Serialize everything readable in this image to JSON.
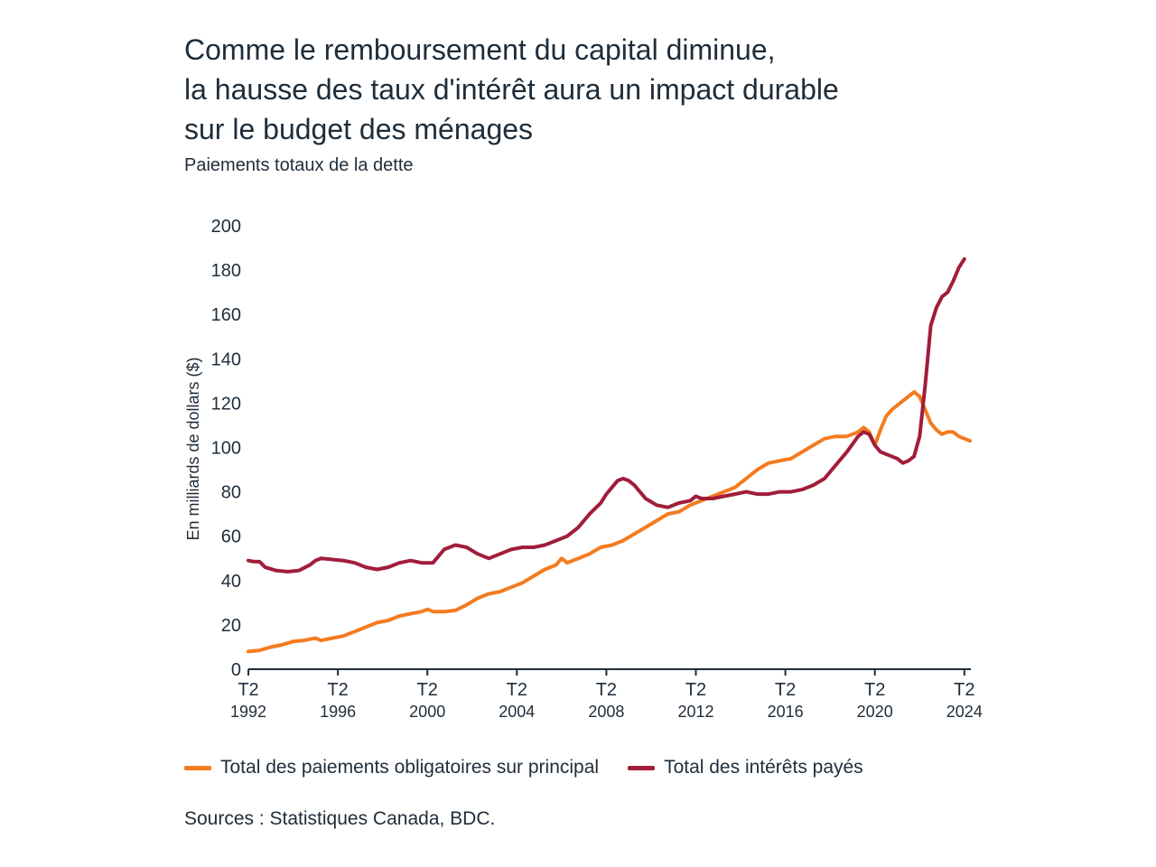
{
  "header": {
    "title_lines": [
      "Comme le remboursement du capital diminue,",
      "la hausse des taux d'intérêt aura un impact durable",
      "sur le budget des ménages"
    ],
    "subtitle": "Paiements totaux de la dette"
  },
  "footer": {
    "source": "Sources : Statistiques Canada, BDC."
  },
  "chart_data": {
    "type": "line",
    "title": "Comme le remboursement du capital diminue, la hausse des taux d'intérêt aura un impact durable sur le budget des ménages",
    "subtitle": "Paiements totaux de la dette",
    "xlabel": "",
    "ylabel": "En milliards de dollars ($)",
    "ylim": [
      0,
      200
    ],
    "xlim": [
      1992.25,
      2024.5
    ],
    "yticks": [
      0,
      20,
      40,
      60,
      80,
      100,
      120,
      140,
      160,
      180,
      200
    ],
    "xticks": [
      {
        "x": 1992.25,
        "top": "T2",
        "bottom": "1992"
      },
      {
        "x": 1996.25,
        "top": "T2",
        "bottom": "1996"
      },
      {
        "x": 2000.25,
        "top": "T2",
        "bottom": "2000"
      },
      {
        "x": 2004.25,
        "top": "T2",
        "bottom": "2004"
      },
      {
        "x": 2008.25,
        "top": "T2",
        "bottom": "2008"
      },
      {
        "x": 2012.25,
        "top": "T2",
        "bottom": "2012"
      },
      {
        "x": 2016.25,
        "top": "T2",
        "bottom": "2016"
      },
      {
        "x": 2020.25,
        "top": "T2",
        "bottom": "2020"
      },
      {
        "x": 2024.25,
        "top": "T2",
        "bottom": "2024"
      }
    ],
    "grid": false,
    "legend_position": "bottom",
    "series": [
      {
        "name": "Total des paiements obligatoires sur principal",
        "color": "#f47b20",
        "points": [
          [
            1992.25,
            8
          ],
          [
            1992.75,
            8.5
          ],
          [
            1993.25,
            10
          ],
          [
            1993.75,
            11
          ],
          [
            1994.25,
            12.5
          ],
          [
            1994.75,
            13
          ],
          [
            1995.25,
            14
          ],
          [
            1995.5,
            13
          ],
          [
            1996.0,
            14
          ],
          [
            1996.5,
            15
          ],
          [
            1997.0,
            17
          ],
          [
            1997.5,
            19
          ],
          [
            1998.0,
            21
          ],
          [
            1998.5,
            22
          ],
          [
            1999.0,
            24
          ],
          [
            1999.5,
            25
          ],
          [
            2000.0,
            26
          ],
          [
            2000.25,
            27
          ],
          [
            2000.5,
            26
          ],
          [
            2001.0,
            26
          ],
          [
            2001.5,
            26.5
          ],
          [
            2002.0,
            29
          ],
          [
            2002.5,
            32
          ],
          [
            2003.0,
            34
          ],
          [
            2003.5,
            35
          ],
          [
            2004.0,
            37
          ],
          [
            2004.5,
            39
          ],
          [
            2005.0,
            42
          ],
          [
            2005.5,
            45
          ],
          [
            2006.0,
            47
          ],
          [
            2006.25,
            50
          ],
          [
            2006.5,
            48
          ],
          [
            2007.0,
            50
          ],
          [
            2007.5,
            52
          ],
          [
            2008.0,
            55
          ],
          [
            2008.5,
            56
          ],
          [
            2009.0,
            58
          ],
          [
            2009.5,
            61
          ],
          [
            2010.0,
            64
          ],
          [
            2010.5,
            67
          ],
          [
            2011.0,
            70
          ],
          [
            2011.5,
            71
          ],
          [
            2012.0,
            74
          ],
          [
            2012.5,
            76
          ],
          [
            2013.0,
            78
          ],
          [
            2013.5,
            80
          ],
          [
            2014.0,
            82
          ],
          [
            2014.5,
            86
          ],
          [
            2015.0,
            90
          ],
          [
            2015.5,
            93
          ],
          [
            2016.0,
            94
          ],
          [
            2016.5,
            95
          ],
          [
            2017.0,
            98
          ],
          [
            2017.5,
            101
          ],
          [
            2018.0,
            104
          ],
          [
            2018.5,
            105
          ],
          [
            2019.0,
            105
          ],
          [
            2019.5,
            107
          ],
          [
            2019.75,
            109
          ],
          [
            2020.0,
            107
          ],
          [
            2020.25,
            101
          ],
          [
            2020.5,
            108
          ],
          [
            2020.75,
            114
          ],
          [
            2021.0,
            117
          ],
          [
            2021.5,
            121
          ],
          [
            2021.75,
            123
          ],
          [
            2022.0,
            125
          ],
          [
            2022.25,
            123
          ],
          [
            2022.5,
            117
          ],
          [
            2022.75,
            111
          ],
          [
            2023.0,
            108
          ],
          [
            2023.25,
            106
          ],
          [
            2023.5,
            107
          ],
          [
            2023.75,
            107
          ],
          [
            2024.0,
            105
          ],
          [
            2024.25,
            104
          ],
          [
            2024.5,
            103
          ]
        ]
      },
      {
        "name": "Total des intérêts payés",
        "color": "#a11d3a",
        "points": [
          [
            1992.25,
            49
          ],
          [
            1992.5,
            48.5
          ],
          [
            1992.75,
            48.5
          ],
          [
            1993.0,
            46
          ],
          [
            1993.5,
            44.5
          ],
          [
            1994.0,
            44
          ],
          [
            1994.5,
            44.5
          ],
          [
            1995.0,
            47
          ],
          [
            1995.25,
            49
          ],
          [
            1995.5,
            50
          ],
          [
            1996.0,
            49.5
          ],
          [
            1996.5,
            49
          ],
          [
            1997.0,
            48
          ],
          [
            1997.5,
            46
          ],
          [
            1998.0,
            45
          ],
          [
            1998.5,
            46
          ],
          [
            1999.0,
            48
          ],
          [
            1999.5,
            49
          ],
          [
            2000.0,
            48
          ],
          [
            2000.5,
            48
          ],
          [
            2001.0,
            54
          ],
          [
            2001.5,
            56
          ],
          [
            2002.0,
            55
          ],
          [
            2002.5,
            52
          ],
          [
            2003.0,
            50
          ],
          [
            2003.5,
            52
          ],
          [
            2004.0,
            54
          ],
          [
            2004.5,
            55
          ],
          [
            2005.0,
            55
          ],
          [
            2005.5,
            56
          ],
          [
            2006.0,
            58
          ],
          [
            2006.5,
            60
          ],
          [
            2007.0,
            64
          ],
          [
            2007.5,
            70
          ],
          [
            2008.0,
            75
          ],
          [
            2008.25,
            79
          ],
          [
            2008.5,
            82
          ],
          [
            2008.75,
            85
          ],
          [
            2009.0,
            86
          ],
          [
            2009.25,
            85
          ],
          [
            2009.5,
            83
          ],
          [
            2010.0,
            77
          ],
          [
            2010.5,
            74
          ],
          [
            2011.0,
            73
          ],
          [
            2011.5,
            75
          ],
          [
            2012.0,
            76
          ],
          [
            2012.25,
            78
          ],
          [
            2012.5,
            77
          ],
          [
            2013.0,
            77
          ],
          [
            2013.5,
            78
          ],
          [
            2014.0,
            79
          ],
          [
            2014.5,
            80
          ],
          [
            2015.0,
            79
          ],
          [
            2015.5,
            79
          ],
          [
            2016.0,
            80
          ],
          [
            2016.5,
            80
          ],
          [
            2017.0,
            81
          ],
          [
            2017.5,
            83
          ],
          [
            2018.0,
            86
          ],
          [
            2018.5,
            92
          ],
          [
            2019.0,
            98
          ],
          [
            2019.5,
            105
          ],
          [
            2019.75,
            107
          ],
          [
            2020.0,
            106
          ],
          [
            2020.25,
            101
          ],
          [
            2020.5,
            98
          ],
          [
            2021.0,
            96
          ],
          [
            2021.25,
            95
          ],
          [
            2021.5,
            93
          ],
          [
            2021.75,
            94
          ],
          [
            2022.0,
            96
          ],
          [
            2022.25,
            105
          ],
          [
            2022.5,
            128
          ],
          [
            2022.75,
            155
          ],
          [
            2023.0,
            163
          ],
          [
            2023.25,
            168
          ],
          [
            2023.5,
            170
          ],
          [
            2023.75,
            175
          ],
          [
            2024.0,
            181
          ],
          [
            2024.25,
            185
          ]
        ]
      }
    ]
  }
}
